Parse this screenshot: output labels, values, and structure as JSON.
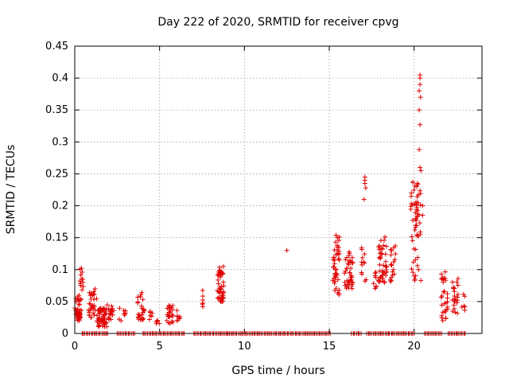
{
  "chart_data": {
    "type": "scatter",
    "title": "Day 222 of 2020, SRMTID for receiver cpvg",
    "xlabel": "GPS time / hours",
    "ylabel": "SRMTID / TECUs",
    "xlim": [
      0,
      24
    ],
    "ylim": [
      0,
      0.45
    ],
    "grid": true,
    "marker": "+",
    "color": "#e00000",
    "xticks": [
      0,
      5,
      10,
      15,
      20
    ],
    "xtick_labels": [
      "0",
      "5",
      "10",
      "15",
      "20"
    ],
    "yticks": [
      0,
      0.05,
      0.1,
      0.15,
      0.2,
      0.25,
      0.3,
      0.35,
      0.4,
      0.45
    ],
    "ytick_labels": [
      "0",
      "0.05",
      "0.1",
      "0.15",
      "0.2",
      "0.25",
      "0.3",
      "0.35",
      "0.4",
      "0.45"
    ],
    "clusters": [
      {
        "x": [
          0.0,
          0.4
        ],
        "y": [
          0.02,
          0.06
        ],
        "n": 40
      },
      {
        "x": [
          0.3,
          0.5
        ],
        "y": [
          0.05,
          0.105
        ],
        "n": 12
      },
      {
        "x": [
          0.8,
          1.3
        ],
        "y": [
          0.025,
          0.07
        ],
        "n": 30
      },
      {
        "x": [
          1.3,
          1.9
        ],
        "y": [
          0.01,
          0.04
        ],
        "n": 55
      },
      {
        "x": [
          1.9,
          2.3
        ],
        "y": [
          0.02,
          0.045
        ],
        "n": 18
      },
      {
        "x": [
          2.6,
          3.0
        ],
        "y": [
          0.02,
          0.04
        ],
        "n": 8
      },
      {
        "x": [
          3.7,
          4.1
        ],
        "y": [
          0.02,
          0.065
        ],
        "n": 25
      },
      {
        "x": [
          4.4,
          4.6
        ],
        "y": [
          0.02,
          0.04
        ],
        "n": 6
      },
      {
        "x": [
          4.8,
          5.0
        ],
        "y": [
          0.015,
          0.03
        ],
        "n": 5
      },
      {
        "x": [
          5.4,
          5.8
        ],
        "y": [
          0.015,
          0.045
        ],
        "n": 25
      },
      {
        "x": [
          6.0,
          6.2
        ],
        "y": [
          0.02,
          0.04
        ],
        "n": 8
      },
      {
        "x": [
          7.4,
          7.6
        ],
        "y": [
          0.04,
          0.07
        ],
        "n": 6
      },
      {
        "x": [
          8.4,
          8.8
        ],
        "y": [
          0.05,
          0.105
        ],
        "n": 45
      },
      {
        "x": [
          15.2,
          15.6
        ],
        "y": [
          0.06,
          0.155
        ],
        "n": 45
      },
      {
        "x": [
          15.9,
          16.4
        ],
        "y": [
          0.07,
          0.13
        ],
        "n": 40
      },
      {
        "x": [
          16.9,
          17.2
        ],
        "y": [
          0.08,
          0.14
        ],
        "n": 12
      },
      {
        "x": [
          17.6,
          17.8
        ],
        "y": [
          0.07,
          0.1
        ],
        "n": 8
      },
      {
        "x": [
          17.9,
          18.4
        ],
        "y": [
          0.08,
          0.155
        ],
        "n": 45
      },
      {
        "x": [
          18.6,
          18.9
        ],
        "y": [
          0.08,
          0.14
        ],
        "n": 18
      },
      {
        "x": [
          19.8,
          20.4
        ],
        "y": [
          0.15,
          0.24
        ],
        "n": 45
      },
      {
        "x": [
          19.8,
          20.3
        ],
        "y": [
          0.08,
          0.15
        ],
        "n": 12
      },
      {
        "x": [
          21.6,
          22.0
        ],
        "y": [
          0.02,
          0.1
        ],
        "n": 30
      },
      {
        "x": [
          22.2,
          22.6
        ],
        "y": [
          0.03,
          0.09
        ],
        "n": 22
      },
      {
        "x": [
          22.8,
          23.0
        ],
        "y": [
          0.035,
          0.065
        ],
        "n": 6
      }
    ],
    "points": [
      [
        12.5,
        0.13
      ],
      [
        17.1,
        0.245
      ],
      [
        17.1,
        0.24
      ],
      [
        17.1,
        0.235
      ],
      [
        17.05,
        0.21
      ],
      [
        17.15,
        0.228
      ],
      [
        20.35,
        0.405
      ],
      [
        20.35,
        0.4
      ],
      [
        20.35,
        0.39
      ],
      [
        20.3,
        0.38
      ],
      [
        20.38,
        0.37
      ],
      [
        20.3,
        0.35
      ],
      [
        20.35,
        0.327
      ],
      [
        20.3,
        0.288
      ],
      [
        20.35,
        0.26
      ],
      [
        20.4,
        0.255
      ],
      [
        20.2,
        0.235
      ],
      [
        20.5,
        0.2
      ],
      [
        20.5,
        0.185
      ],
      [
        20.4,
        0.083
      ],
      [
        20.0,
        0.09
      ],
      [
        20.05,
        0.085
      ]
    ],
    "zero_x_ranges": [
      [
        0.4,
        2.0
      ],
      [
        2.5,
        3.5
      ],
      [
        4.0,
        6.5
      ],
      [
        7.0,
        9.0
      ],
      [
        9.0,
        15.1
      ],
      [
        16.3,
        16.9
      ],
      [
        17.2,
        20.0
      ],
      [
        20.6,
        21.6
      ],
      [
        22.0,
        23.0
      ]
    ]
  }
}
